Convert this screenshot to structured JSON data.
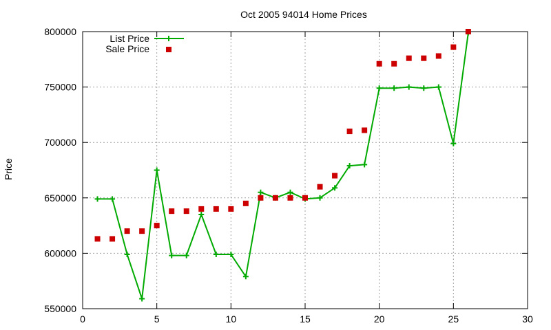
{
  "chart_data": {
    "type": "line",
    "title": "Oct 2005 94014 Home Prices",
    "xlabel": "",
    "ylabel": "Price",
    "xlim": [
      0,
      30
    ],
    "ylim": [
      550000,
      800000
    ],
    "x_ticks": [
      0,
      5,
      10,
      15,
      20,
      25,
      30
    ],
    "y_ticks": [
      550000,
      600000,
      650000,
      700000,
      750000,
      800000
    ],
    "grid": true,
    "legend_position": "top-left",
    "series": [
      {
        "name": "List Price",
        "style": "line-plus",
        "color": "#00aa00",
        "x": [
          1,
          2,
          3,
          4,
          5,
          6,
          7,
          8,
          9,
          10,
          11,
          12,
          13,
          14,
          15,
          16,
          17,
          18,
          19,
          20,
          21,
          22,
          23,
          24,
          25,
          26
        ],
        "y": [
          649000,
          649000,
          599000,
          559000,
          675000,
          598000,
          598000,
          635000,
          599000,
          599000,
          579000,
          655000,
          650000,
          655000,
          649000,
          650000,
          659000,
          679000,
          680000,
          749000,
          749000,
          750000,
          749000,
          750000,
          699000,
          799000
        ]
      },
      {
        "name": "Sale Price",
        "style": "square-points",
        "color": "#cc0000",
        "x": [
          1,
          2,
          3,
          4,
          5,
          6,
          7,
          8,
          9,
          10,
          11,
          12,
          13,
          14,
          15,
          16,
          17,
          18,
          19,
          20,
          21,
          22,
          23,
          24,
          25,
          26
        ],
        "y": [
          613000,
          613000,
          620000,
          620000,
          625000,
          638000,
          638000,
          640000,
          640000,
          640000,
          645000,
          650000,
          650000,
          650000,
          650000,
          660000,
          670000,
          710000,
          711000,
          771000,
          771000,
          776000,
          776000,
          778000,
          786000,
          800000
        ]
      }
    ]
  }
}
